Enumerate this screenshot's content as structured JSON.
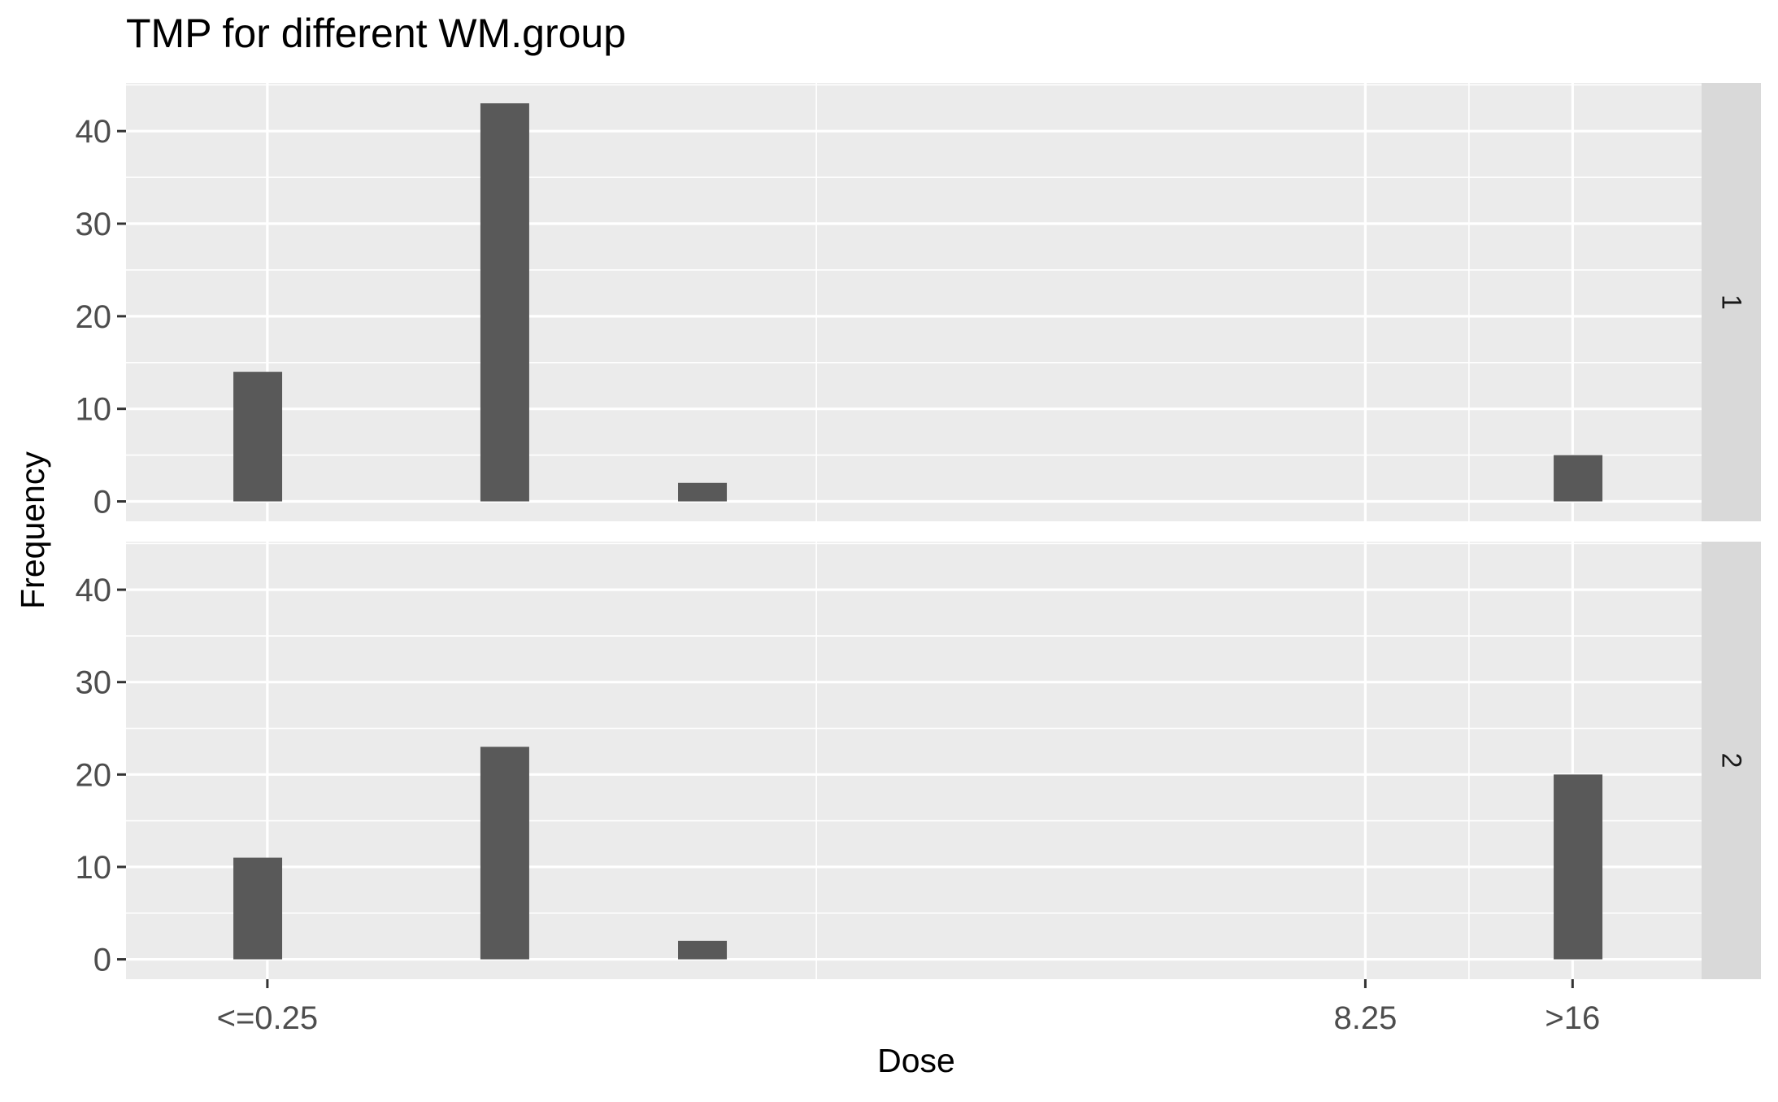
{
  "chart_data": {
    "type": "bar",
    "title": "TMP for different WM.group",
    "xlabel": "Dose",
    "ylabel": "Frequency",
    "x_tick_labels": [
      {
        "label": "<=0.25",
        "x": 0.25
      },
      {
        "label": "8.25",
        "x": 8.25
      },
      {
        "label": ">16",
        "x": 9.76
      }
    ],
    "xlim": [
      -0.78,
      10.7
    ],
    "ylim": [
      -2.15,
      45.2
    ],
    "y_ticks": [
      0,
      10,
      20,
      30,
      40
    ],
    "facet_label_position": "right",
    "bar_color": "#595959",
    "panel_background": "#ebebeb",
    "strip_background": "#d9d9d9",
    "grid": true,
    "panels": [
      {
        "strip_label": "1",
        "bars": [
          {
            "x": 0.18,
            "value": 14
          },
          {
            "x": 1.98,
            "value": 43
          },
          {
            "x": 3.42,
            "value": 2
          },
          {
            "x": 9.8,
            "value": 5
          }
        ]
      },
      {
        "strip_label": "2",
        "bars": [
          {
            "x": 0.18,
            "value": 11
          },
          {
            "x": 1.98,
            "value": 23
          },
          {
            "x": 3.42,
            "value": 2
          },
          {
            "x": 9.8,
            "value": 20
          }
        ]
      }
    ]
  }
}
